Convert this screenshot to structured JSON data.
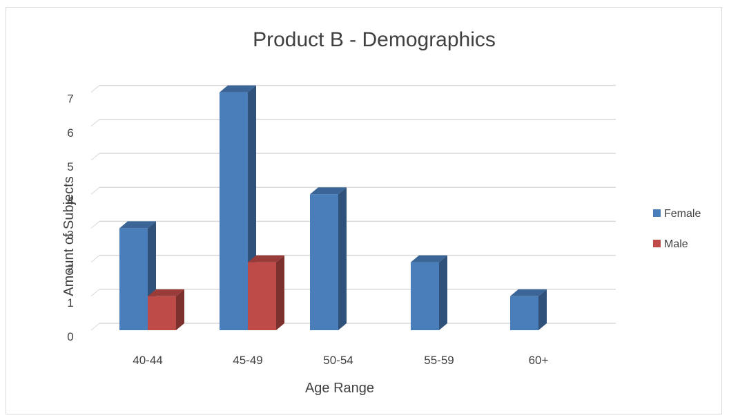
{
  "chart_data": {
    "type": "bar",
    "title": "Product B - Demographics",
    "xlabel": "Age Range",
    "ylabel": "Amount of Subjects",
    "categories": [
      "40-44",
      "45-49",
      "50-54",
      "55-59",
      "60+"
    ],
    "series": [
      {
        "name": "Female",
        "values": [
          3,
          7,
          4,
          2,
          1
        ],
        "color": "#4a7ebb"
      },
      {
        "name": "Male",
        "values": [
          1,
          2,
          0,
          0,
          0
        ],
        "color": "#be4b48"
      }
    ],
    "ylim": [
      0,
      7
    ],
    "yticks": [
      "0",
      "1",
      "2",
      "3",
      "4",
      "5",
      "6",
      "7"
    ],
    "grid": true,
    "three_d": true,
    "legend_position": "right"
  }
}
